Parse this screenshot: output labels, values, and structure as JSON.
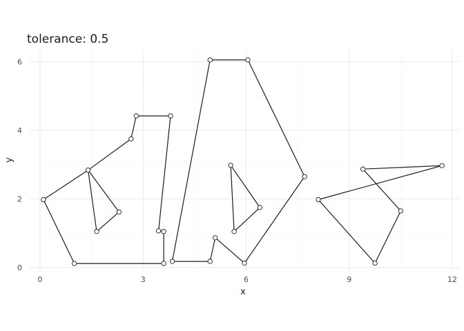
{
  "chart_data": {
    "type": "line",
    "title": "tolerance: 0.5",
    "xlabel": "x",
    "ylabel": "y",
    "xlim": [
      -0.3,
      12.2
    ],
    "ylim": [
      -0.1,
      6.35
    ],
    "x_ticks": [
      0,
      3,
      6,
      9,
      12
    ],
    "y_ticks": [
      0,
      2,
      4,
      6
    ],
    "grid": true,
    "legend": "none",
    "colors": {
      "line": "#1a1a1a",
      "grid_major": "#ebebeb",
      "grid_minor": "#f5f5f5",
      "point_fill": "#ffffff"
    },
    "series": [
      {
        "values": [
          [
            0.1,
            1.98
          ],
          [
            1.0,
            0.12
          ],
          [
            3.6,
            0.12
          ],
          [
            3.6,
            1.05
          ],
          [
            3.45,
            1.07
          ],
          [
            3.8,
            4.42
          ],
          [
            2.8,
            4.42
          ],
          [
            2.65,
            3.75
          ],
          [
            1.4,
            2.84
          ],
          [
            2.3,
            1.62
          ],
          [
            1.65,
            1.05
          ],
          [
            1.4,
            2.84
          ],
          [
            0.1,
            1.98
          ]
        ]
      },
      {
        "values": [
          [
            3.85,
            0.18
          ],
          [
            4.95,
            6.05
          ],
          [
            6.05,
            6.05
          ],
          [
            7.7,
            2.65
          ],
          [
            5.95,
            0.13
          ],
          [
            5.1,
            0.87
          ],
          [
            4.95,
            0.18
          ],
          [
            3.85,
            0.18
          ]
        ]
      },
      {
        "values": [
          [
            5.55,
            2.98
          ],
          [
            6.4,
            1.75
          ],
          [
            5.65,
            1.05
          ],
          [
            5.55,
            2.98
          ]
        ]
      },
      {
        "values": [
          [
            8.1,
            1.98
          ],
          [
            11.7,
            2.97
          ],
          [
            9.4,
            2.87
          ],
          [
            10.5,
            1.65
          ],
          [
            9.75,
            0.13
          ],
          [
            8.1,
            1.98
          ]
        ]
      }
    ]
  }
}
